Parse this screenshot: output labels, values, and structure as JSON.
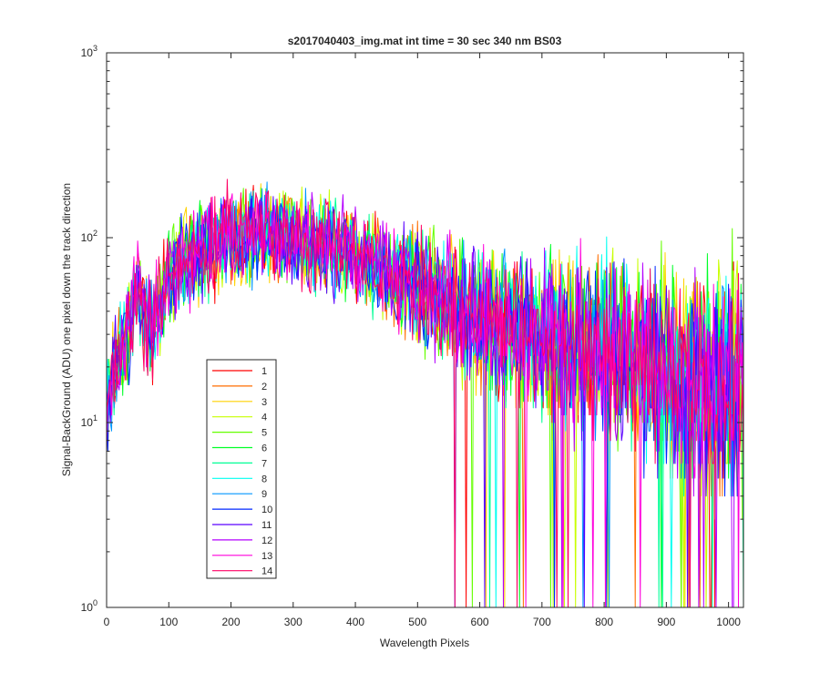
{
  "chart_data": {
    "type": "line",
    "title": "s2017040403_img.mat int time = 30 sec  340 nm BS03",
    "xlabel": "Wavelength Pixels",
    "ylabel": "Signal-BackGround (ADU) one pixel down the track direction",
    "xlim": [
      0,
      1024
    ],
    "ylim": [
      1,
      1000
    ],
    "yscale": "log",
    "x_ticks": [
      "0",
      "100",
      "200",
      "300",
      "400",
      "500",
      "600",
      "700",
      "800",
      "900",
      "1000"
    ],
    "y_ticks": [
      {
        "base": "10",
        "exp": "0"
      },
      {
        "base": "10",
        "exp": "1"
      },
      {
        "base": "10",
        "exp": "2"
      },
      {
        "base": "10",
        "exp": "3"
      }
    ],
    "grid": false,
    "legend_position": "lower-left",
    "profile": {
      "x": [
        0,
        10,
        20,
        30,
        40,
        52,
        60,
        70,
        80,
        100,
        150,
        200,
        250,
        300,
        350,
        400,
        450,
        500,
        550,
        600,
        650,
        700,
        750,
        800,
        850,
        900,
        950,
        1024
      ],
      "y": [
        12,
        17,
        22,
        27,
        35,
        60,
        36,
        32,
        38,
        60,
        85,
        100,
        105,
        100,
        92,
        80,
        65,
        55,
        45,
        36,
        32,
        28,
        26,
        24,
        21,
        18,
        17,
        16
      ]
    },
    "series": [
      {
        "name": "1",
        "color": "#ff0000"
      },
      {
        "name": "2",
        "color": "#ff6e00"
      },
      {
        "name": "3",
        "color": "#ffd200"
      },
      {
        "name": "4",
        "color": "#c8ff00"
      },
      {
        "name": "5",
        "color": "#64ff00"
      },
      {
        "name": "6",
        "color": "#00ff28"
      },
      {
        "name": "7",
        "color": "#00ff96"
      },
      {
        "name": "8",
        "color": "#00fff0"
      },
      {
        "name": "9",
        "color": "#0096ff"
      },
      {
        "name": "10",
        "color": "#0028ff"
      },
      {
        "name": "11",
        "color": "#5a00ff"
      },
      {
        "name": "12",
        "color": "#b400ff"
      },
      {
        "name": "13",
        "color": "#ff00dc"
      },
      {
        "name": "14",
        "color": "#ff0064"
      }
    ]
  }
}
